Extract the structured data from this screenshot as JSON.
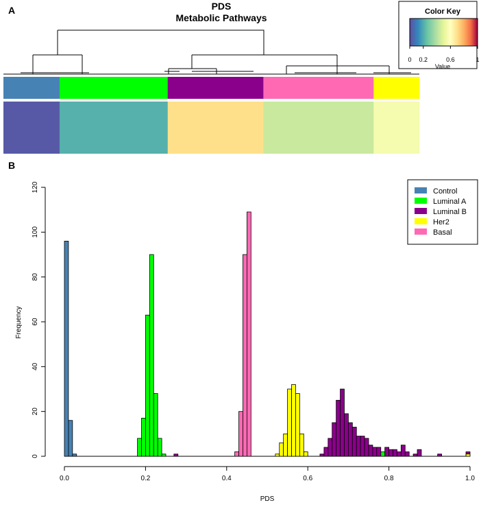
{
  "panelA": {
    "label": "A",
    "title": "PDS",
    "subtitle": "Metabolic Pathways",
    "colorKey": {
      "title": "Color Key",
      "ticks": [
        "0",
        "0.2",
        "0.6",
        "1"
      ],
      "axisLabel": "Value"
    }
  },
  "panelB": {
    "label": "B"
  },
  "chart_data": {
    "type": "bar",
    "xlabel": "PDS",
    "ylabel": "Frequency",
    "xlim": [
      0,
      1
    ],
    "ylim": [
      0,
      120
    ],
    "xticks": [
      "0.0",
      "0.2",
      "0.4",
      "0.6",
      "0.8",
      "1.0"
    ],
    "yticks": [
      "0",
      "20",
      "40",
      "60",
      "80",
      "100",
      "120"
    ],
    "binWidth": 0.01,
    "series": [
      {
        "name": "Control",
        "color": "#4682B4",
        "bins": [
          [
            0.0,
            96
          ],
          [
            0.01,
            16
          ],
          [
            0.02,
            1
          ]
        ]
      },
      {
        "name": "Luminal A",
        "color": "#00FF00",
        "bins": [
          [
            0.18,
            8
          ],
          [
            0.19,
            17
          ],
          [
            0.2,
            63
          ],
          [
            0.21,
            90
          ],
          [
            0.22,
            28
          ],
          [
            0.23,
            8
          ],
          [
            0.24,
            1
          ],
          [
            0.78,
            2
          ]
        ]
      },
      {
        "name": "Luminal B",
        "color": "#8B008B",
        "bins": [
          [
            0.27,
            1
          ],
          [
            0.63,
            1
          ],
          [
            0.64,
            4
          ],
          [
            0.65,
            8
          ],
          [
            0.66,
            15
          ],
          [
            0.67,
            25
          ],
          [
            0.68,
            30
          ],
          [
            0.69,
            19
          ],
          [
            0.7,
            15
          ],
          [
            0.71,
            13
          ],
          [
            0.72,
            9
          ],
          [
            0.73,
            9
          ],
          [
            0.74,
            8
          ],
          [
            0.75,
            5
          ],
          [
            0.76,
            4
          ],
          [
            0.77,
            4
          ],
          [
            0.79,
            4
          ],
          [
            0.8,
            3
          ],
          [
            0.81,
            3
          ],
          [
            0.82,
            2
          ],
          [
            0.83,
            5
          ],
          [
            0.84,
            2
          ],
          [
            0.86,
            1
          ],
          [
            0.87,
            3
          ],
          [
            0.92,
            1
          ],
          [
            0.99,
            2
          ]
        ]
      },
      {
        "name": "Her2",
        "color": "#FFFF00",
        "bins": [
          [
            0.52,
            1
          ],
          [
            0.53,
            6
          ],
          [
            0.54,
            10
          ],
          [
            0.55,
            30
          ],
          [
            0.56,
            32
          ],
          [
            0.57,
            28
          ],
          [
            0.58,
            10
          ],
          [
            0.59,
            2
          ],
          [
            0.99,
            1
          ]
        ]
      },
      {
        "name": "Basal",
        "color": "#FF69B4",
        "bins": [
          [
            0.42,
            2
          ],
          [
            0.43,
            20
          ],
          [
            0.44,
            90
          ],
          [
            0.45,
            109
          ]
        ]
      }
    ],
    "heatmapGroups": [
      {
        "name": "Control",
        "color": "#4682B4",
        "fraction": 0.135,
        "value": 0.02
      },
      {
        "name": "Luminal A",
        "color": "#00FF00",
        "fraction": 0.26,
        "value": 0.21
      },
      {
        "name": "Luminal B",
        "color": "#8B008B",
        "fraction": 0.23,
        "value": 0.7
      },
      {
        "name": "Basal",
        "color": "#FF69B4",
        "fraction": 0.265,
        "value": 0.44
      },
      {
        "name": "Her2",
        "color": "#FFFF00",
        "fraction": 0.11,
        "value": 0.56
      }
    ]
  }
}
